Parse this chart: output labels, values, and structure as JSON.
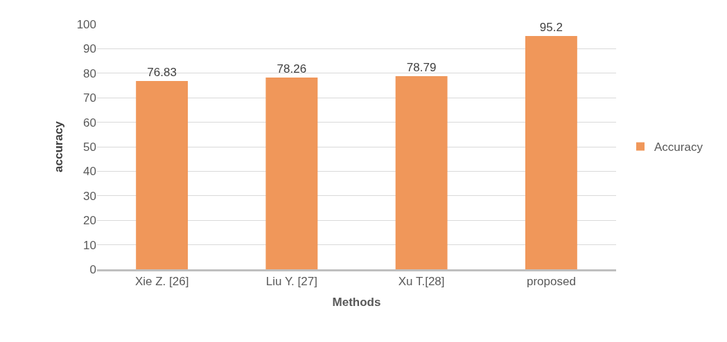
{
  "chart_data": {
    "type": "bar",
    "xlabel": "Methods",
    "ylabel": "accuracy",
    "categories": [
      "Xie Z. [26]",
      "Liu Y. [27]",
      "Xu T.[28]",
      "proposed"
    ],
    "series": [
      {
        "name": "Accuracy",
        "color": "#f0975a",
        "values": [
          76.83,
          78.26,
          78.79,
          95.2
        ]
      }
    ],
    "ylim": [
      0,
      100
    ],
    "yticks": [
      0,
      10,
      20,
      30,
      40,
      50,
      60,
      70,
      80,
      90,
      100
    ],
    "grid": "y",
    "legend": "right",
    "data_labels": true
  }
}
